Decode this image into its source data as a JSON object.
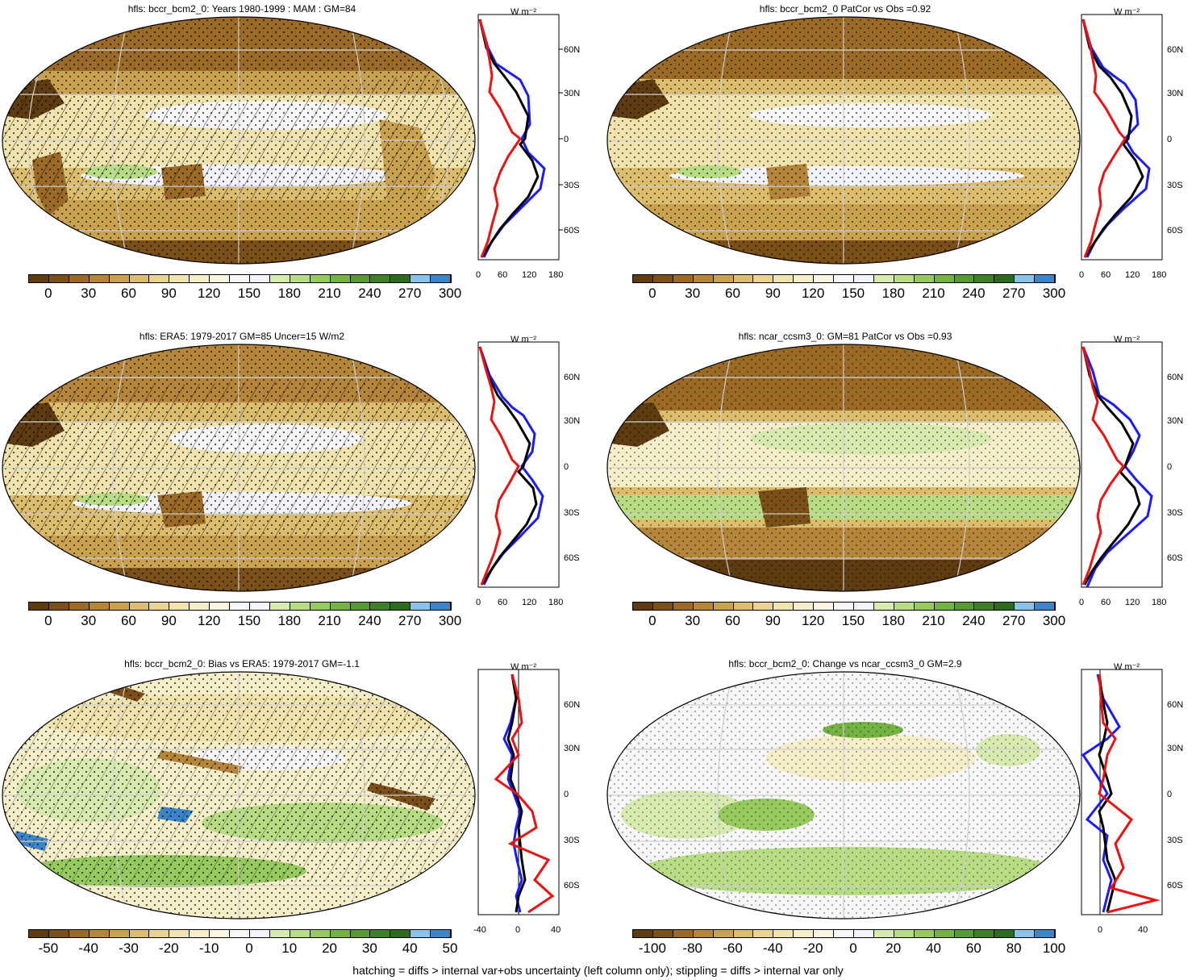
{
  "footer": "hatching = diffs > internal var+obs uncertainty (left column only); stippling = diffs > internal var only",
  "profile_unit": "W m⁻²",
  "lat_ticks": [
    "60N",
    "30N",
    "0",
    "30S",
    "60S"
  ],
  "rows": [
    {
      "panels": [
        {
          "title": "hfls: bccr_bcm2_0: Years 1980-1999 : MAM : GM=84",
          "map_kind": "absolute",
          "hatched": true,
          "colorbar_labels": [
            "0",
            "30",
            "60",
            "90",
            "120",
            "150",
            "180",
            "210",
            "240",
            "270",
            "300"
          ],
          "colorbar_colors": [
            "#5e3c10",
            "#7a4f18",
            "#9b6a25",
            "#b5863a",
            "#c9a24f",
            "#dcbd6e",
            "#e9d38f",
            "#f1e3ad",
            "#f6eec9",
            "#f9f5e1",
            "#f7f7f7",
            "#f3f4fb",
            "#d7ebb0",
            "#b7dc84",
            "#96c95e",
            "#74b244",
            "#579a33",
            "#3f7f27",
            "#2c6a1d",
            "#88c4ea",
            "#3b85c8"
          ],
          "profile_xlabels": [
            "0",
            "60",
            "120",
            "180"
          ]
        },
        {
          "title": "hfls: bccr_bcm2_0 PatCor vs Obs =0.92",
          "map_kind": "absolute",
          "hatched": false,
          "colorbar_labels": [
            "0",
            "30",
            "60",
            "90",
            "120",
            "150",
            "180",
            "210",
            "240",
            "270",
            "300"
          ],
          "colorbar_colors": [
            "#5e3c10",
            "#7a4f18",
            "#9b6a25",
            "#b5863a",
            "#c9a24f",
            "#dcbd6e",
            "#e9d38f",
            "#f1e3ad",
            "#f6eec9",
            "#f9f5e1",
            "#f7f7f7",
            "#f3f4fb",
            "#d7ebb0",
            "#b7dc84",
            "#96c95e",
            "#74b244",
            "#579a33",
            "#3f7f27",
            "#2c6a1d",
            "#88c4ea",
            "#3b85c8"
          ],
          "profile_xlabels": [
            "0",
            "60",
            "120",
            "180"
          ]
        }
      ]
    },
    {
      "panels": [
        {
          "title": "hfls: ERA5: 1979-2017 GM=85 Uncer=15 W/m2",
          "map_kind": "absolute",
          "hatched": true,
          "colorbar_labels": [
            "0",
            "30",
            "60",
            "90",
            "120",
            "150",
            "180",
            "210",
            "240",
            "270",
            "300"
          ],
          "colorbar_colors": [
            "#5e3c10",
            "#7a4f18",
            "#9b6a25",
            "#b5863a",
            "#c9a24f",
            "#dcbd6e",
            "#e9d38f",
            "#f1e3ad",
            "#f6eec9",
            "#f9f5e1",
            "#f7f7f7",
            "#f3f4fb",
            "#d7ebb0",
            "#b7dc84",
            "#96c95e",
            "#74b244",
            "#579a33",
            "#3f7f27",
            "#2c6a1d",
            "#88c4ea",
            "#3b85c8"
          ],
          "profile_xlabels": [
            "0",
            "60",
            "120",
            "180"
          ]
        },
        {
          "title": "hfls: ncar_ccsm3_0: GM=81 PatCor vs Obs =0.93",
          "map_kind": "absolute",
          "hatched": false,
          "colorbar_labels": [
            "0",
            "30",
            "60",
            "90",
            "120",
            "150",
            "180",
            "210",
            "240",
            "270",
            "300"
          ],
          "colorbar_colors": [
            "#5e3c10",
            "#7a4f18",
            "#9b6a25",
            "#b5863a",
            "#c9a24f",
            "#dcbd6e",
            "#e9d38f",
            "#f1e3ad",
            "#f6eec9",
            "#f9f5e1",
            "#f7f7f7",
            "#f3f4fb",
            "#d7ebb0",
            "#b7dc84",
            "#96c95e",
            "#74b244",
            "#579a33",
            "#3f7f27",
            "#2c6a1d",
            "#88c4ea",
            "#3b85c8"
          ],
          "profile_xlabels": [
            "0",
            "60",
            "120",
            "180"
          ]
        }
      ]
    },
    {
      "panels": [
        {
          "title": "hfls: bccr_bcm2_0: Bias vs ERA5: 1979-2017 GM=-1.1",
          "map_kind": "difference",
          "hatched": true,
          "colorbar_labels": [
            "-50",
            "-40",
            "-30",
            "-20",
            "-10",
            "0",
            "10",
            "20",
            "30",
            "40",
            "50"
          ],
          "colorbar_colors": [
            "#5e3c10",
            "#7a4f18",
            "#9b6a25",
            "#b5863a",
            "#c9a24f",
            "#dcbd6e",
            "#e9d38f",
            "#f1e3ad",
            "#f6eec9",
            "#f9f5e1",
            "#f7f7f7",
            "#f3f4fb",
            "#d7ebb0",
            "#b7dc84",
            "#96c95e",
            "#74b244",
            "#579a33",
            "#3f7f27",
            "#2c6a1d",
            "#88c4ea",
            "#3b85c8"
          ],
          "profile_xlabels": [
            "-40",
            "0",
            "40"
          ]
        },
        {
          "title": "hfls: bccr_bcm2_0: Change vs ncar_ccsm3_0 GM=2.9",
          "map_kind": "difference",
          "hatched": false,
          "colorbar_labels": [
            "-100",
            "-80",
            "-60",
            "-40",
            "-20",
            "0",
            "20",
            "40",
            "60",
            "80",
            "100"
          ],
          "colorbar_colors": [
            "#5e3c10",
            "#7a4f18",
            "#9b6a25",
            "#b5863a",
            "#c9a24f",
            "#dcbd6e",
            "#e9d38f",
            "#f1e3ad",
            "#f6eec9",
            "#f9f5e1",
            "#f7f7f7",
            "#f3f4fb",
            "#d7ebb0",
            "#b7dc84",
            "#96c95e",
            "#74b244",
            "#579a33",
            "#3f7f27",
            "#2c6a1d",
            "#88c4ea",
            "#3b85c8"
          ],
          "profile_xlabels": [
            "0",
            "40"
          ]
        }
      ]
    }
  ]
}
